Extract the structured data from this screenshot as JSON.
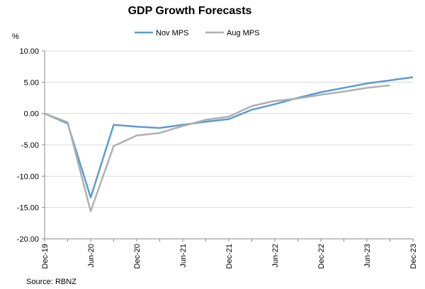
{
  "chart_data": {
    "type": "line",
    "title": "GDP Growth Forecasts",
    "ylabel": "%",
    "xlabel": "",
    "ylim": [
      -20,
      10
    ],
    "yticks": [
      10,
      5,
      0,
      -5,
      -10,
      -15,
      -20
    ],
    "ytick_labels": [
      "10.00",
      "5.00",
      "0.00",
      "-5.00",
      "-10.00",
      "-15.00",
      "-20.00"
    ],
    "xtick_labels": [
      "Dec-19",
      "Jun-20",
      "Dec-20",
      "Jun-21",
      "Dec-21",
      "Jun-22",
      "Dec-22",
      "Jun-23",
      "Dec-23"
    ],
    "grid": true,
    "legend_position": "top-center",
    "series": [
      {
        "name": "Nov MPS",
        "color": "#5b9bd5",
        "x": [
          0,
          1,
          2,
          3,
          4,
          5,
          6,
          7,
          8,
          9,
          10,
          11,
          12,
          13,
          14,
          15,
          16
        ],
        "values": [
          0.0,
          -1.6,
          -13.4,
          -1.8,
          -2.1,
          -2.3,
          -1.8,
          -1.3,
          -0.9,
          0.6,
          1.5,
          2.5,
          3.4,
          4.1,
          4.8,
          5.3,
          5.8
        ]
      },
      {
        "name": "Aug MPS",
        "color": "#b0b0b0",
        "x": [
          0,
          1,
          2,
          3,
          4,
          5,
          6,
          7,
          8,
          9,
          10,
          11,
          12,
          13,
          14,
          15
        ],
        "values": [
          0.0,
          -1.4,
          -15.6,
          -5.2,
          -3.5,
          -3.1,
          -2.0,
          -1.0,
          -0.5,
          1.2,
          2.0,
          2.4,
          3.0,
          3.5,
          4.1,
          4.5
        ]
      }
    ]
  },
  "source": "Source: RBNZ"
}
